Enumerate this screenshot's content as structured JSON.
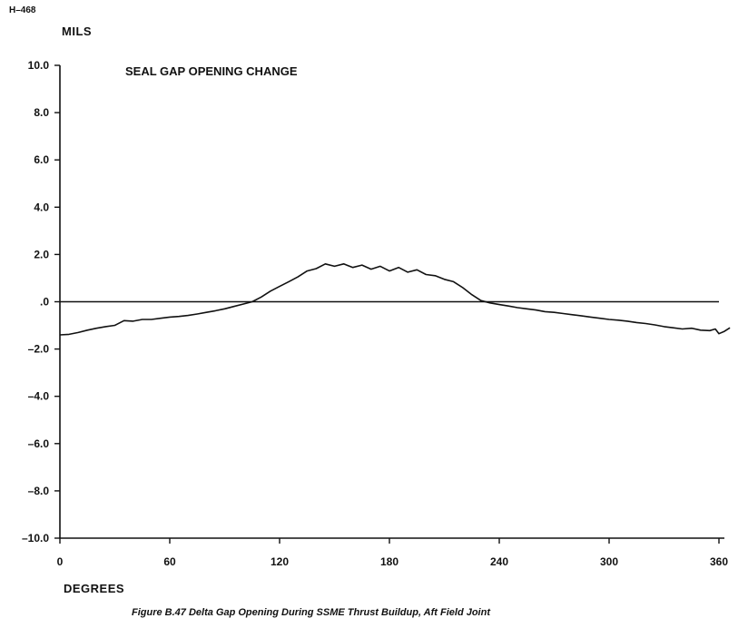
{
  "header": {
    "doc_id": "H–468"
  },
  "caption": "Figure B.47 Delta Gap Opening During SSME Thrust Buildup, Aft Field Joint",
  "chart_data": {
    "type": "line",
    "title": "SEAL GAP OPENING CHANGE",
    "xlabel": "DEGREES",
    "ylabel": "MILS",
    "xlim": [
      0,
      360
    ],
    "ylim": [
      -10,
      10
    ],
    "x_ticks": [
      0,
      60,
      120,
      180,
      240,
      300,
      360
    ],
    "x_tick_labels": [
      "0",
      "60",
      "120",
      "180",
      "240",
      "300",
      "360"
    ],
    "y_ticks": [
      10,
      8,
      6,
      4,
      2,
      0,
      -2,
      -4,
      -6,
      -8,
      -10
    ],
    "y_tick_labels": [
      "10.0",
      "8.0",
      "6.0",
      "4.0",
      "2.0",
      ".0",
      "–2.0",
      "–4.0",
      "–6.0",
      "–8.0",
      "–10.0"
    ],
    "grid": false,
    "reference_line": {
      "y": 0
    },
    "series": [
      {
        "x": [
          0,
          5,
          10,
          15,
          20,
          25,
          30,
          35,
          40,
          45,
          50,
          55,
          60,
          65,
          70,
          75,
          80,
          85,
          90,
          95,
          100,
          105,
          110,
          115,
          120,
          125,
          130,
          135,
          140,
          145,
          150,
          155,
          160,
          165,
          170,
          175,
          180,
          185,
          190,
          195,
          200,
          205,
          210,
          215,
          220,
          225,
          230,
          235,
          240,
          245,
          250,
          255,
          260,
          265,
          270,
          275,
          280,
          285,
          290,
          295,
          300,
          305,
          310,
          315,
          320,
          325,
          330,
          335,
          340,
          345,
          350,
          355,
          358,
          360,
          363,
          366
        ],
        "y": [
          -1.4,
          -1.38,
          -1.3,
          -1.2,
          -1.12,
          -1.05,
          -1.0,
          -0.8,
          -0.82,
          -0.75,
          -0.75,
          -0.7,
          -0.65,
          -0.62,
          -0.58,
          -0.52,
          -0.45,
          -0.38,
          -0.3,
          -0.2,
          -0.1,
          0.0,
          0.2,
          0.45,
          0.65,
          0.85,
          1.05,
          1.3,
          1.4,
          1.6,
          1.5,
          1.6,
          1.45,
          1.55,
          1.38,
          1.5,
          1.3,
          1.45,
          1.25,
          1.35,
          1.15,
          1.1,
          0.95,
          0.85,
          0.6,
          0.3,
          0.05,
          -0.05,
          -0.12,
          -0.18,
          -0.25,
          -0.3,
          -0.35,
          -0.42,
          -0.45,
          -0.5,
          -0.55,
          -0.6,
          -0.65,
          -0.7,
          -0.75,
          -0.78,
          -0.82,
          -0.88,
          -0.92,
          -0.98,
          -1.05,
          -1.1,
          -1.15,
          -1.12,
          -1.2,
          -1.22,
          -1.15,
          -1.35,
          -1.25,
          -1.1
        ]
      }
    ]
  }
}
